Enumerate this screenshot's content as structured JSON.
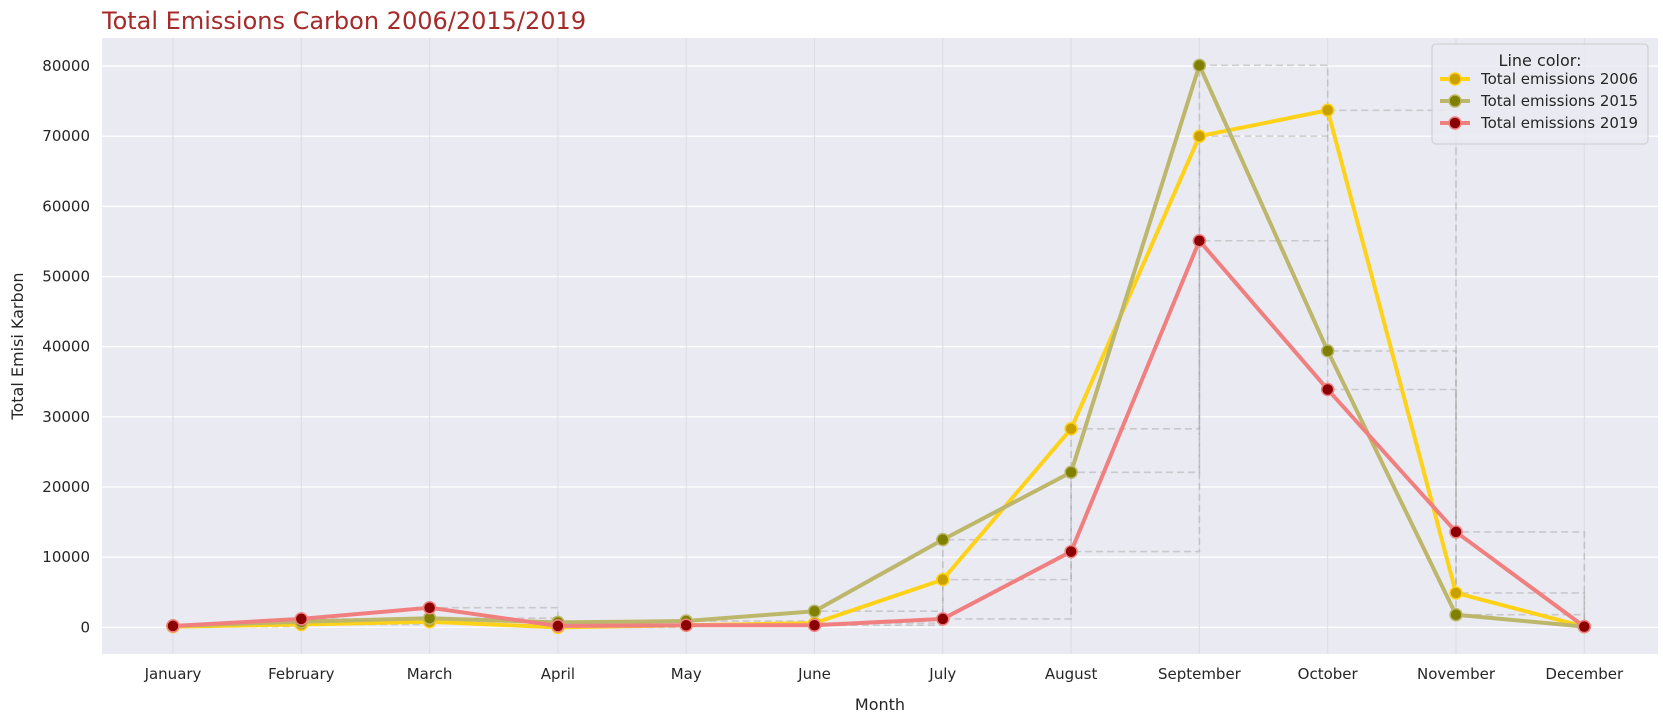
{
  "chart_data": {
    "type": "line",
    "title": "Total Emissions Carbon 2006/2015/2019",
    "xlabel": "Month",
    "ylabel": "Total Emisi Karbon",
    "categories": [
      "January",
      "February",
      "March",
      "April",
      "May",
      "June",
      "July",
      "August",
      "September",
      "October",
      "November",
      "December"
    ],
    "ylim": [
      -3800,
      84000
    ],
    "yticks": [
      0,
      10000,
      20000,
      30000,
      40000,
      50000,
      60000,
      70000,
      80000
    ],
    "grid": true,
    "legend": {
      "title": "Line color:",
      "placement": "top-right"
    },
    "series": [
      {
        "name": "Total emissions 2006",
        "line_color": "#FFD21A",
        "marker_color": "#C9A000",
        "values": [
          100,
          400,
          800,
          0,
          300,
          600,
          6800,
          28300,
          70000,
          73700,
          4900,
          100
        ]
      },
      {
        "name": "Total emissions 2015",
        "line_color": "#BDB76B",
        "marker_color": "#808000",
        "values": [
          200,
          800,
          1300,
          700,
          900,
          2300,
          12500,
          22100,
          80100,
          39400,
          1800,
          100
        ]
      },
      {
        "name": "Total emissions 2019",
        "line_color": "#F08080",
        "marker_color": "#8B0000",
        "values": [
          200,
          1200,
          2800,
          200,
          300,
          300,
          1200,
          10800,
          55100,
          33900,
          13600,
          100
        ]
      }
    ],
    "colors": {
      "background": "#EAEAF2",
      "grid": "#FFFFFF",
      "title": "#A52A2A",
      "step_lines": "#A0A0A0"
    }
  }
}
